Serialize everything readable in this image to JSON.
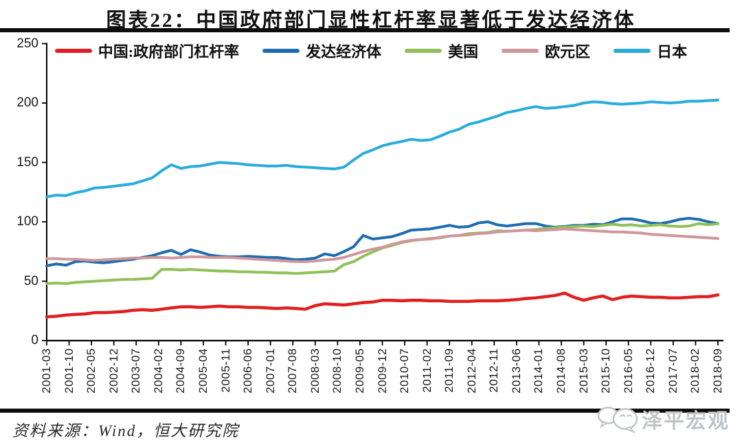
{
  "title": "图表22：中国政府部门显性杠杆率显著低于发达经济体",
  "source_note": "资料来源：Wind，恒大研究院",
  "watermark": {
    "label": "泽平宏观",
    "icon": "wechat-bubbles-icon",
    "color": "#c0c4c6"
  },
  "colors": {
    "china": "#e02020",
    "developed": "#1e6cb0",
    "us": "#8fc158",
    "eurozone": "#cf969c",
    "japan": "#29acdc",
    "axis": "#000000",
    "divider": "#0d0d0d"
  },
  "chart_data": {
    "type": "line",
    "title": "图表22：中国政府部门显性杠杆率显著低于发达经济体",
    "xlabel": "",
    "ylabel": "",
    "ylim": [
      0,
      250
    ],
    "yticks": [
      0,
      50,
      100,
      150,
      200,
      250
    ],
    "grid": false,
    "legend_position": "top",
    "x_tick_labels": [
      "2001-03",
      "2001-10",
      "2002-05",
      "2002-12",
      "2003-07",
      "2004-02",
      "2004-09",
      "2005-04",
      "2005-11",
      "2006-06",
      "2007-01",
      "2007-08",
      "2008-03",
      "2008-10",
      "2009-05",
      "2009-12",
      "2010-07",
      "2011-02",
      "2011-09",
      "2012-04",
      "2012-11",
      "2013-06",
      "2014-01",
      "2014-08",
      "2015-03",
      "2015-10",
      "2016-05",
      "2016-12",
      "2017-07",
      "2018-02",
      "2018-09"
    ],
    "x": [
      "2001-03",
      "2001-06",
      "2001-09",
      "2001-12",
      "2002-03",
      "2002-06",
      "2002-09",
      "2002-12",
      "2003-03",
      "2003-06",
      "2003-09",
      "2003-12",
      "2004-03",
      "2004-06",
      "2004-09",
      "2004-12",
      "2005-03",
      "2005-06",
      "2005-09",
      "2005-12",
      "2006-03",
      "2006-06",
      "2006-09",
      "2006-12",
      "2007-03",
      "2007-06",
      "2007-09",
      "2007-12",
      "2008-03",
      "2008-06",
      "2008-09",
      "2008-12",
      "2009-03",
      "2009-06",
      "2009-09",
      "2009-12",
      "2010-03",
      "2010-06",
      "2010-09",
      "2010-12",
      "2011-03",
      "2011-06",
      "2011-09",
      "2011-12",
      "2012-03",
      "2012-06",
      "2012-09",
      "2012-12",
      "2013-03",
      "2013-06",
      "2013-09",
      "2013-12",
      "2014-03",
      "2014-06",
      "2014-09",
      "2014-12",
      "2015-03",
      "2015-06",
      "2015-09",
      "2015-12",
      "2016-03",
      "2016-06",
      "2016-09",
      "2016-12",
      "2017-03",
      "2017-06",
      "2017-09",
      "2017-12",
      "2018-03",
      "2018-06",
      "2018-09"
    ],
    "series": [
      {
        "id": "china-government-leverage",
        "name": "中国:政府部门杠杆率",
        "color": "#e02020",
        "values": [
          20,
          20.5,
          21.5,
          22,
          22.5,
          23.5,
          23.5,
          24,
          24.5,
          25.5,
          26,
          25.5,
          26.5,
          27.5,
          28.5,
          28.5,
          28,
          28.5,
          29,
          28.5,
          28.5,
          28,
          28,
          27.5,
          27,
          27.5,
          27,
          26.5,
          29.5,
          31,
          30.5,
          30,
          31,
          32,
          32.5,
          34,
          34,
          33.5,
          34,
          34,
          33.5,
          33.5,
          33,
          33,
          33,
          33.5,
          33.5,
          33.5,
          34,
          34.5,
          35.5,
          36,
          37,
          38,
          40,
          36.5,
          34,
          36,
          37.5,
          34.5,
          36.5,
          37.5,
          37,
          36.5,
          36.5,
          36,
          36,
          36.5,
          37,
          37,
          38.5
        ]
      },
      {
        "id": "developed-economies",
        "name": "发达经济体",
        "color": "#1e6cb0",
        "values": [
          63,
          64.5,
          63.5,
          66.5,
          67,
          66,
          65.5,
          66.5,
          67.5,
          68.5,
          70,
          71.5,
          74,
          76,
          72.5,
          76.5,
          74.5,
          72,
          71,
          70.5,
          70.5,
          71,
          70.5,
          70,
          70,
          69,
          68,
          68.5,
          69.5,
          73,
          71.5,
          75,
          79,
          88.5,
          85.5,
          86.5,
          87.5,
          90,
          93,
          93.5,
          94,
          95.5,
          97,
          95.5,
          96,
          99,
          100,
          97.5,
          96.5,
          97.5,
          98.5,
          98.5,
          96.5,
          95.5,
          96,
          97,
          97,
          98,
          97.5,
          100,
          102.5,
          102.5,
          101,
          99,
          98.5,
          100,
          102,
          103,
          102,
          100,
          98.5
        ]
      },
      {
        "id": "united-states",
        "name": "美国",
        "color": "#8fc158",
        "values": [
          48,
          48.5,
          48,
          49,
          49.5,
          50,
          50.5,
          51,
          51.5,
          51.5,
          52,
          52.5,
          60,
          60,
          59.5,
          60,
          59.5,
          59,
          58.5,
          58.5,
          58,
          58,
          57.5,
          57.5,
          57,
          57,
          56.5,
          57,
          57.5,
          58,
          58.5,
          64,
          66.5,
          71,
          74.5,
          78,
          80,
          82.5,
          84,
          85,
          86,
          86.5,
          88,
          88.5,
          90,
          90.5,
          91,
          92.5,
          92,
          92.5,
          93,
          93.5,
          94.5,
          95,
          95.5,
          96,
          96.5,
          96,
          97,
          98,
          97,
          97.5,
          96.5,
          97,
          97.5,
          96.5,
          96,
          96.5,
          98.5,
          97.5,
          98.5
        ]
      },
      {
        "id": "eurozone",
        "name": "欧元区",
        "color": "#cf969c",
        "values": [
          69,
          69,
          68.5,
          68.5,
          68,
          67.5,
          68,
          68.5,
          69,
          69.5,
          69.5,
          70,
          70,
          69.5,
          70,
          70.5,
          70.5,
          70,
          70,
          70,
          69.5,
          69,
          68.5,
          68,
          67.5,
          67,
          66.5,
          66.5,
          67,
          68,
          68.5,
          70,
          72.5,
          75,
          77,
          78.5,
          81,
          83,
          84.5,
          85,
          85.5,
          87,
          88,
          88.5,
          89,
          90,
          90.5,
          91.5,
          92,
          92.5,
          93,
          92.5,
          93,
          93.5,
          94,
          93.5,
          93,
          92.5,
          92,
          91.5,
          91.5,
          91,
          90.5,
          89.5,
          89,
          88.5,
          88,
          87.5,
          87,
          86.5,
          86
        ]
      },
      {
        "id": "japan",
        "name": "日本",
        "color": "#29acdc",
        "values": [
          121,
          122.5,
          122,
          124.5,
          126,
          128.5,
          129,
          130,
          131,
          132,
          134.5,
          137,
          143,
          148,
          145,
          146.5,
          147,
          148.5,
          150,
          149.5,
          149,
          148,
          147.5,
          147,
          147,
          147.5,
          146.5,
          146,
          145.5,
          145,
          144.5,
          146,
          152,
          157.5,
          160.5,
          164,
          166,
          167.5,
          169.5,
          168.5,
          169,
          172,
          175.5,
          178,
          182,
          184,
          186.5,
          189,
          192,
          193.5,
          195.5,
          197,
          195.5,
          196,
          197,
          198,
          200,
          201,
          200.5,
          199.5,
          199,
          199.5,
          200,
          201,
          200.5,
          200,
          200.5,
          201.5,
          201.5,
          202,
          202.5
        ]
      }
    ]
  }
}
